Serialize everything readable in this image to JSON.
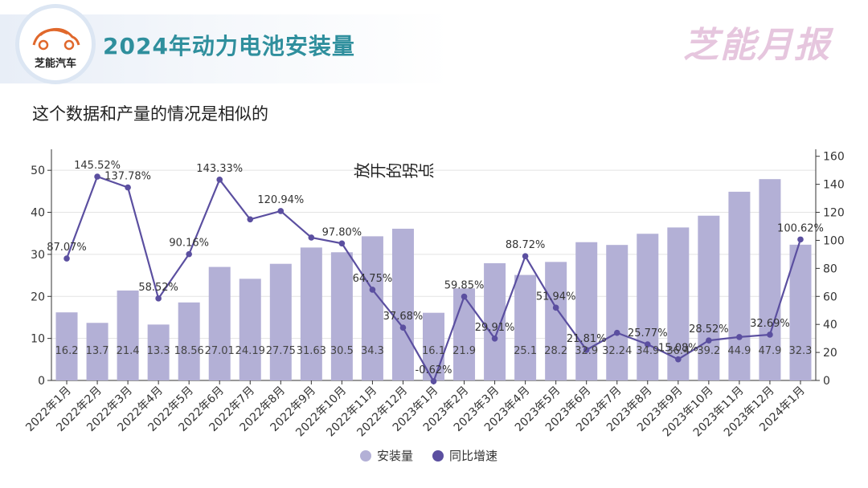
{
  "header": {
    "title": "2024年动力电池安装量",
    "logo_text": "芝能汽车",
    "brand": "芝能月报"
  },
  "subtitle": "这个数据和产量的情况是相似的",
  "annotation": "放开的拐点",
  "colors": {
    "bar": "#b3b0d6",
    "line": "#5b4fa0",
    "title": "#2f8f9d",
    "brand": "#e6c6de",
    "logo_car": "#e0682c"
  },
  "chart_data": {
    "type": "bar",
    "title": "2024年动力电池安装量",
    "categories": [
      "2022年1月",
      "2022年2月",
      "2022年3月",
      "2022年4月",
      "2022年5月",
      "2022年6月",
      "2022年7月",
      "2022年8月",
      "2022年9月",
      "2022年10月",
      "2022年11月",
      "2022年12月",
      "2023年1月",
      "2023年2月",
      "2023年3月",
      "2023年4月",
      "2023年5月",
      "2023年6月",
      "2023年7月",
      "2023年8月",
      "2023年9月",
      "2023年10月",
      "2023年11月",
      "2023年12月",
      "2024年1月"
    ],
    "series": [
      {
        "name": "安装量",
        "type": "bar",
        "axis": "left",
        "values": [
          16.2,
          13.7,
          21.4,
          13.3,
          18.56,
          27.01,
          24.19,
          27.75,
          31.63,
          30.5,
          34.3,
          36.1,
          16.1,
          21.9,
          27.9,
          25.1,
          28.2,
          32.9,
          32.24,
          34.9,
          36.4,
          39.2,
          44.9,
          47.9,
          32.3
        ],
        "labels": [
          "16.2",
          "13.7",
          "21.4",
          "13.3",
          "18.56",
          "27.01",
          "24.19",
          "27.75",
          "31.63",
          "30.5",
          "34.3",
          "",
          "16.1",
          "21.9",
          "",
          "25.1",
          "28.2",
          "32.9",
          "32.24",
          "34.9",
          "36.4",
          "39.2",
          "44.9",
          "47.9",
          "32.3"
        ]
      },
      {
        "name": "同比增速",
        "type": "line",
        "axis": "right",
        "values": [
          87.07,
          145.52,
          137.78,
          58.52,
          90.16,
          143.33,
          115,
          120.94,
          102,
          97.8,
          64.75,
          37.68,
          -0.62,
          59.85,
          29.91,
          88.72,
          51.94,
          21.81,
          34,
          25.77,
          15.08,
          28.52,
          31,
          32.69,
          100.62
        ],
        "labels": [
          "87.07%",
          "145.52%",
          "137.78%",
          "58.52%",
          "90.16%",
          "143.33%",
          "",
          "120.94%",
          "",
          "97.80%",
          "64.75%",
          "37.68%",
          "-0.62%",
          "59.85%",
          "29.91%",
          "88.72%",
          "51.94%",
          "21.81%",
          "",
          "25.77%",
          "15.08%",
          "28.52%",
          "",
          "32.69%",
          "100.62%"
        ]
      }
    ],
    "y_left": {
      "lim": [
        0,
        55
      ],
      "ticks": [
        0,
        10,
        20,
        30,
        40,
        50
      ]
    },
    "y_right": {
      "lim": [
        0,
        165
      ],
      "ticks": [
        0,
        20,
        40,
        60,
        80,
        100,
        120,
        140,
        160
      ]
    },
    "legend": [
      "安装量",
      "同比增速"
    ],
    "legend_position": "bottom-center"
  }
}
